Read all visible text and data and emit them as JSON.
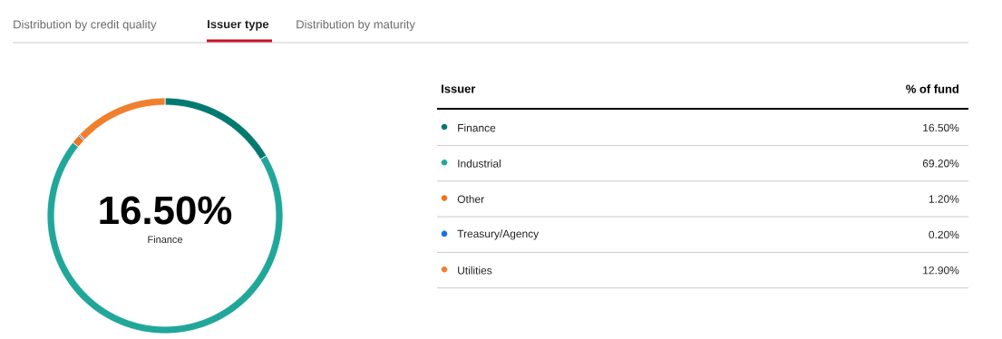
{
  "chart_data": {
    "type": "donut",
    "categories": [
      "Finance",
      "Industrial",
      "Other",
      "Treasury/Agency",
      "Utilities"
    ],
    "values": [
      16.5,
      69.2,
      1.2,
      0.2,
      12.9
    ],
    "colors": [
      "#007a70",
      "#21a79a",
      "#ee7421",
      "#1a6fe0",
      "#f07f2e"
    ],
    "value_labels": [
      "16.50%",
      "69.20%",
      "1.20%",
      "0.20%",
      "12.90%"
    ],
    "legend": "right",
    "legend_title": "Issuer",
    "annotations": [
      "Distribution by credit quality",
      "Issuer type",
      "Distribution by maturity",
      "% of fund",
      "16.50%",
      "Finance"
    ]
  }
}
